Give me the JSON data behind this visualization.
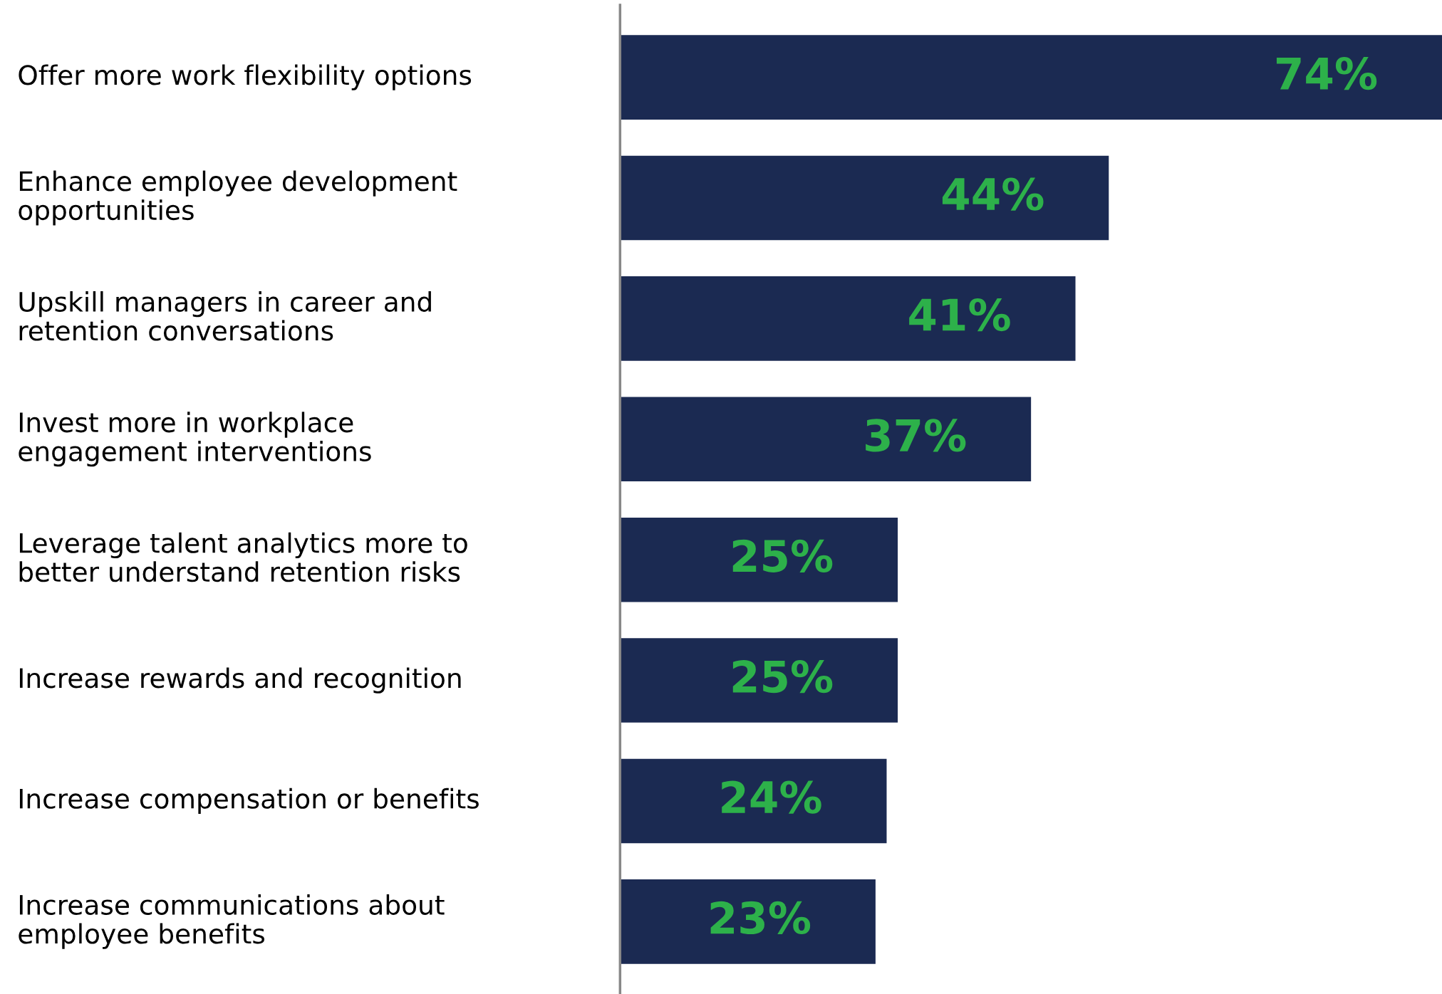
{
  "chart_data": {
    "type": "bar",
    "orientation": "horizontal",
    "categories": [
      "Offer more work flexibility options",
      "Enhance employee development\nopportunities",
      "Upskill managers in career and\nretention conversations",
      "Invest more in workplace\nengagement interventions",
      "Leverage talent analytics more to\nbetter understand retention risks",
      "Increase rewards and recognition",
      "Increase compensation or benefits",
      "Increase communications about\nemployee benefits"
    ],
    "values": [
      74,
      44,
      41,
      37,
      25,
      25,
      24,
      23
    ],
    "value_labels": [
      "74%",
      "44%",
      "41%",
      "37%",
      "25%",
      "25%",
      "24%",
      "23%"
    ],
    "color": "#1b2a52",
    "xlim": [
      0,
      74
    ],
    "tick_labels": "y"
  }
}
